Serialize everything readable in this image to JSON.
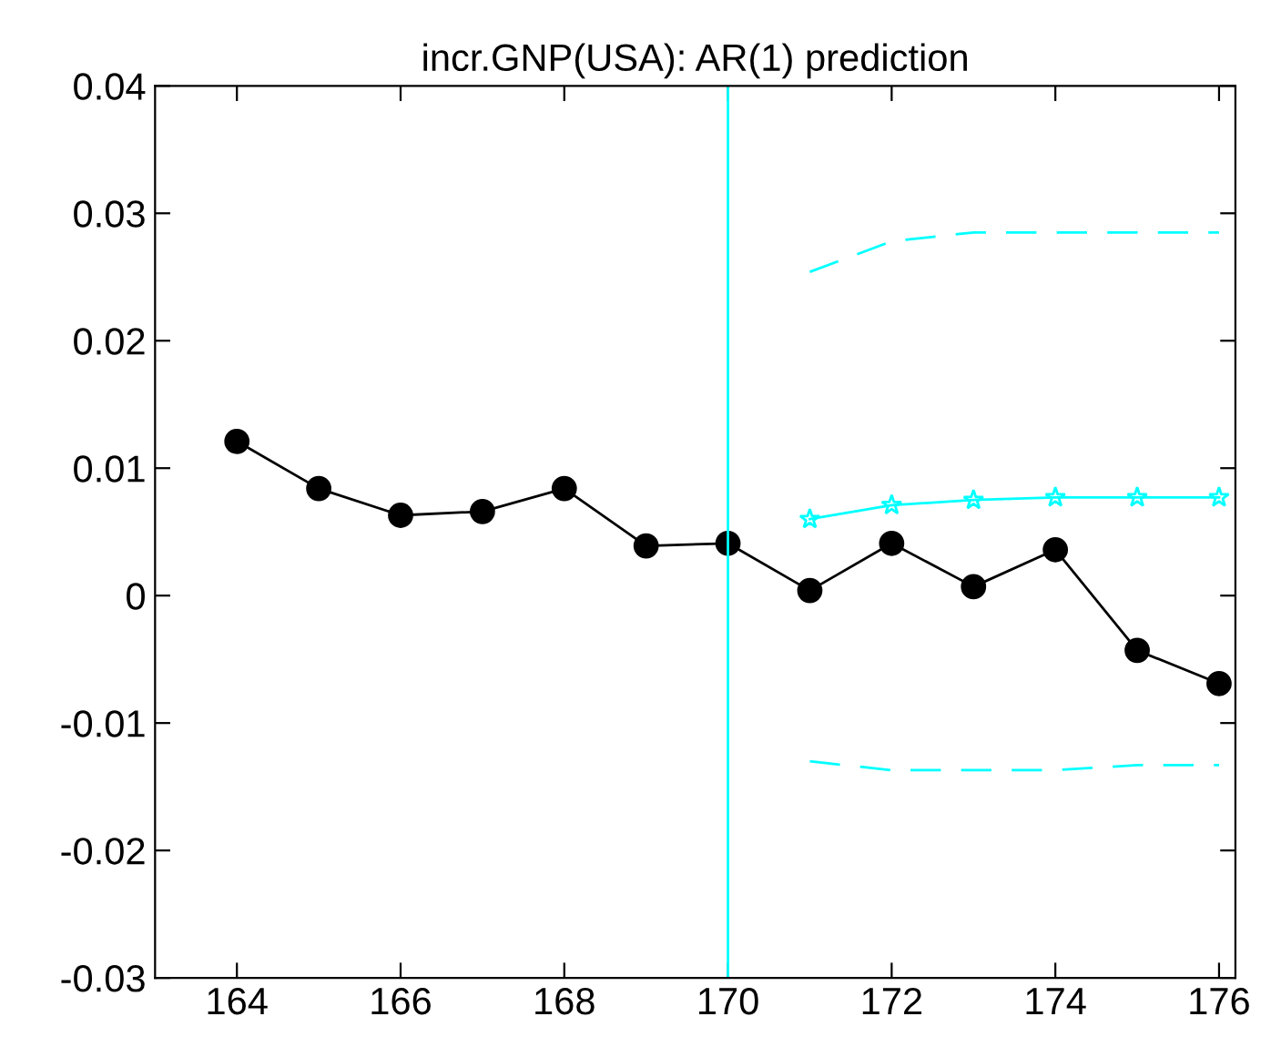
{
  "chart_data": {
    "type": "line",
    "title": "incr.GNP(USA): AR(1) prediction",
    "xlim": [
      163,
      176.2
    ],
    "xticks": [
      164,
      166,
      168,
      170,
      172,
      174,
      176
    ],
    "ylim": [
      -0.03,
      0.04
    ],
    "yticks": [
      -0.03,
      -0.02,
      -0.01,
      0,
      0.01,
      0.02,
      0.03,
      0.04
    ],
    "grid": false,
    "legend": false,
    "series": [
      {
        "color": "#000000",
        "marker": "circle",
        "line_style": "solid",
        "x": [
          164,
          165,
          166,
          167,
          168,
          169,
          170,
          171,
          172,
          173,
          174,
          175,
          176
        ],
        "values": [
          0.0121,
          0.0084,
          0.0063,
          0.0066,
          0.0084,
          0.0039,
          0.0041,
          0.0004,
          0.0041,
          0.0007,
          0.0036,
          -0.0043,
          -0.0069
        ]
      },
      {
        "color": "#00ffff",
        "marker": "star",
        "line_style": "solid",
        "x": [
          171,
          172,
          173,
          174,
          175,
          176
        ],
        "values": [
          0.006,
          0.0071,
          0.0075,
          0.0077,
          0.0077,
          0.0077
        ]
      },
      {
        "color": "#00ffff",
        "marker": "none",
        "line_style": "dashed",
        "x": [
          171,
          172,
          173,
          174,
          175,
          176
        ],
        "values": [
          0.0254,
          0.0278,
          0.0285,
          0.0285,
          0.0285,
          0.0285
        ]
      },
      {
        "color": "#00ffff",
        "marker": "none",
        "line_style": "dashed",
        "x": [
          171,
          172,
          173,
          174,
          175,
          176
        ],
        "values": [
          -0.013,
          -0.0137,
          -0.0137,
          -0.0137,
          -0.0133,
          -0.0133
        ]
      }
    ],
    "ref_lines": [
      {
        "axis": "x",
        "value": 170,
        "color": "#00ffff"
      }
    ]
  }
}
